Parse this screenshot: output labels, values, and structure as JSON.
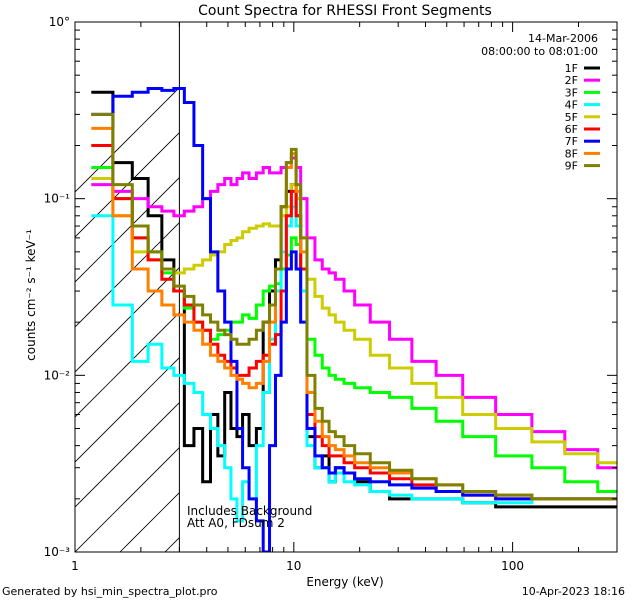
{
  "chart_data": {
    "type": "line",
    "title": "Count Spectra for RHESSI Front Segments",
    "xlabel": "Energy (keV)",
    "ylabel": "counts cm⁻² s⁻¹ keV⁻¹",
    "xscale": "log",
    "yscale": "log",
    "xlim": [
      1,
      300
    ],
    "ylim": [
      0.001,
      1
    ],
    "x_tick_labels": [
      "1",
      "10",
      "100"
    ],
    "y_tick_labels": [
      "10°",
      "10⁻¹",
      "10⁻²",
      "10⁻³"
    ],
    "date": "14-Mar-2006",
    "time_range": "08:00:00 to 08:01:00",
    "annotation_lines": [
      "Includes Background",
      "Att A0, FDsum 2"
    ],
    "hatched_region_max_kev": 3,
    "footer_left": "Generated by hsi_min_spectra_plot.pro",
    "footer_right": "10-Apr-2023 18:16",
    "series": [
      {
        "name": "1F",
        "color": "#000000",
        "x": [
          1.33,
          1.67,
          2,
          2.33,
          2.67,
          3,
          3.33,
          3.67,
          4,
          4.33,
          4.67,
          5,
          5.33,
          5.67,
          6,
          6.5,
          7,
          7.5,
          8,
          8.5,
          9,
          9.5,
          10,
          10.5,
          11,
          12,
          13,
          14,
          15,
          16,
          18,
          20,
          25,
          30,
          40,
          50,
          70,
          100,
          150,
          200,
          300
        ],
        "values": [
          0.4,
          0.16,
          0.13,
          0.08,
          0.045,
          0.03,
          0.004,
          0.005,
          0.0025,
          0.006,
          0.0035,
          0.008,
          0.005,
          0.0045,
          0.006,
          0.004,
          0.005,
          0.02,
          0.03,
          0.045,
          0.09,
          0.11,
          0.12,
          0.08,
          0.04,
          0.0045,
          0.003,
          0.0035,
          0.0025,
          0.003,
          0.0028,
          0.0025,
          0.0022,
          0.002,
          0.002,
          0.002,
          0.0019,
          0.0018,
          0.0018,
          0.0018,
          0.0018
        ]
      },
      {
        "name": "2F",
        "color": "#ff00ff",
        "x": [
          1.33,
          1.67,
          2,
          2.33,
          2.67,
          3,
          3.33,
          3.67,
          4,
          4.33,
          4.67,
          5,
          5.33,
          5.67,
          6,
          6.5,
          7,
          7.5,
          8,
          8.5,
          9,
          9.5,
          10,
          10.5,
          11,
          12,
          13,
          14,
          15,
          16,
          18,
          20,
          25,
          30,
          40,
          50,
          70,
          100,
          150,
          200,
          300
        ],
        "values": [
          0.12,
          0.11,
          0.1,
          0.09,
          0.085,
          0.08,
          0.085,
          0.09,
          0.1,
          0.11,
          0.12,
          0.13,
          0.12,
          0.13,
          0.14,
          0.13,
          0.14,
          0.15,
          0.14,
          0.14,
          0.15,
          0.16,
          0.17,
          0.15,
          0.1,
          0.06,
          0.045,
          0.04,
          0.038,
          0.035,
          0.03,
          0.025,
          0.02,
          0.016,
          0.012,
          0.01,
          0.0075,
          0.006,
          0.0048,
          0.0038,
          0.003
        ]
      },
      {
        "name": "3F",
        "color": "#00ff00",
        "x": [
          1.33,
          1.67,
          2,
          2.33,
          2.67,
          3,
          3.33,
          3.67,
          4,
          4.33,
          4.67,
          5,
          5.33,
          5.67,
          6,
          6.5,
          7,
          7.5,
          8,
          8.5,
          9,
          9.5,
          10,
          10.5,
          11,
          12,
          13,
          14,
          15,
          16,
          18,
          20,
          25,
          30,
          40,
          50,
          70,
          100,
          150,
          200,
          300
        ],
        "values": [
          0.15,
          0.1,
          0.06,
          0.05,
          0.038,
          0.03,
          0.024,
          0.02,
          0.018,
          0.016,
          0.017,
          0.018,
          0.02,
          0.02,
          0.022,
          0.021,
          0.025,
          0.03,
          0.032,
          0.033,
          0.04,
          0.048,
          0.06,
          0.055,
          0.03,
          0.016,
          0.013,
          0.011,
          0.01,
          0.0095,
          0.009,
          0.0085,
          0.008,
          0.0075,
          0.0065,
          0.0055,
          0.0045,
          0.0035,
          0.003,
          0.0025,
          0.0022
        ]
      },
      {
        "name": "4F",
        "color": "#00ffff",
        "x": [
          1.33,
          1.67,
          2,
          2.33,
          2.67,
          3,
          3.33,
          3.67,
          4,
          4.33,
          4.67,
          5,
          5.33,
          5.67,
          6,
          6.5,
          7,
          7.5,
          8,
          8.5,
          9,
          9.5,
          10,
          10.5,
          11,
          12,
          13,
          14,
          15,
          16,
          18,
          20,
          25,
          30,
          40,
          50,
          70,
          100,
          150,
          200,
          300
        ],
        "values": [
          0.08,
          0.025,
          0.012,
          0.015,
          0.011,
          0.01,
          0.009,
          0.008,
          0.006,
          0.005,
          0.004,
          0.003,
          0.002,
          0.0015,
          0.0025,
          0.002,
          0.004,
          0.008,
          0.016,
          0.03,
          0.05,
          0.07,
          0.09,
          0.07,
          0.03,
          0.004,
          0.003,
          0.003,
          0.0025,
          0.0028,
          0.0025,
          0.0024,
          0.0022,
          0.0021,
          0.002,
          0.002,
          0.0019,
          0.0019,
          0.002,
          0.002,
          0.002
        ]
      },
      {
        "name": "5F",
        "color": "#cccc00",
        "x": [
          1.33,
          1.67,
          2,
          2.33,
          2.67,
          3,
          3.33,
          3.67,
          4,
          4.33,
          4.67,
          5,
          5.33,
          5.67,
          6,
          6.5,
          7,
          7.5,
          8,
          8.5,
          9,
          9.5,
          10,
          10.5,
          11,
          12,
          13,
          14,
          15,
          16,
          18,
          20,
          25,
          30,
          40,
          50,
          70,
          100,
          150,
          200,
          300
        ],
        "values": [
          0.13,
          0.08,
          0.05,
          0.045,
          0.04,
          0.038,
          0.04,
          0.042,
          0.045,
          0.048,
          0.05,
          0.055,
          0.058,
          0.06,
          0.065,
          0.068,
          0.07,
          0.072,
          0.07,
          0.07,
          0.08,
          0.09,
          0.12,
          0.1,
          0.06,
          0.035,
          0.028,
          0.024,
          0.022,
          0.02,
          0.018,
          0.016,
          0.013,
          0.011,
          0.009,
          0.0075,
          0.006,
          0.005,
          0.0042,
          0.0036,
          0.0032
        ]
      },
      {
        "name": "6F",
        "color": "#ff0000",
        "x": [
          1.33,
          1.67,
          2,
          2.33,
          2.67,
          3,
          3.33,
          3.67,
          4,
          4.33,
          4.67,
          5,
          5.33,
          5.67,
          6,
          6.5,
          7,
          7.5,
          8,
          8.5,
          9,
          9.5,
          10,
          10.5,
          11,
          12,
          13,
          14,
          15,
          16,
          18,
          20,
          25,
          30,
          40,
          50,
          70,
          100,
          150,
          200,
          300
        ],
        "values": [
          0.2,
          0.1,
          0.06,
          0.045,
          0.035,
          0.03,
          0.025,
          0.02,
          0.018,
          0.015,
          0.013,
          0.012,
          0.011,
          0.01,
          0.01,
          0.011,
          0.012,
          0.013,
          0.015,
          0.017,
          0.03,
          0.08,
          0.11,
          0.08,
          0.04,
          0.006,
          0.0045,
          0.004,
          0.0035,
          0.0035,
          0.0032,
          0.003,
          0.0028,
          0.0026,
          0.0024,
          0.0022,
          0.0021,
          0.002,
          0.002,
          0.002,
          0.002
        ]
      },
      {
        "name": "7F",
        "color": "#0000ff",
        "x": [
          1.33,
          1.67,
          2,
          2.33,
          2.67,
          3,
          3.33,
          3.67,
          4,
          4.33,
          4.67,
          5,
          5.33,
          5.67,
          6,
          6.5,
          7,
          7.5,
          8,
          8.5,
          9,
          9.5,
          10,
          10.5,
          11,
          12,
          13,
          14,
          15,
          16,
          18,
          20,
          25,
          30,
          40,
          50,
          70,
          100,
          150,
          200,
          300
        ],
        "values": [
          0.3,
          0.38,
          0.4,
          0.42,
          0.41,
          0.42,
          0.35,
          0.2,
          0.1,
          0.05,
          0.03,
          0.02,
          0.012,
          0.005,
          0.003,
          0.002,
          0.0015,
          0.001,
          0.004,
          0.01,
          0.02,
          0.04,
          0.05,
          0.04,
          0.02,
          0.005,
          0.0035,
          0.003,
          0.0028,
          0.003,
          0.0028,
          0.0026,
          0.0025,
          0.0024,
          0.0023,
          0.0022,
          0.0021,
          0.002,
          0.002,
          0.002,
          0.002
        ]
      },
      {
        "name": "8F",
        "color": "#ff8000",
        "x": [
          1.33,
          1.67,
          2,
          2.33,
          2.67,
          3,
          3.33,
          3.67,
          4,
          4.33,
          4.67,
          5,
          5.33,
          5.67,
          6,
          6.5,
          7,
          7.5,
          8,
          8.5,
          9,
          9.5,
          10,
          10.5,
          11,
          12,
          13,
          14,
          15,
          16,
          18,
          20,
          25,
          30,
          40,
          50,
          70,
          100,
          150,
          200,
          300
        ],
        "values": [
          0.25,
          0.08,
          0.04,
          0.03,
          0.025,
          0.022,
          0.02,
          0.018,
          0.015,
          0.013,
          0.012,
          0.011,
          0.01,
          0.0095,
          0.009,
          0.0085,
          0.009,
          0.012,
          0.02,
          0.04,
          0.09,
          0.15,
          0.18,
          0.11,
          0.05,
          0.008,
          0.0055,
          0.0045,
          0.004,
          0.0038,
          0.0035,
          0.0032,
          0.003,
          0.0028,
          0.0026,
          0.0024,
          0.0022,
          0.0021,
          0.002,
          0.002,
          0.002
        ]
      },
      {
        "name": "9F",
        "color": "#808000",
        "x": [
          1.33,
          1.67,
          2,
          2.33,
          2.67,
          3,
          3.33,
          3.67,
          4,
          4.33,
          4.67,
          5,
          5.33,
          5.67,
          6,
          6.5,
          7,
          7.5,
          8,
          8.5,
          9,
          9.5,
          10,
          10.5,
          11,
          12,
          13,
          14,
          15,
          16,
          18,
          20,
          25,
          30,
          40,
          50,
          70,
          100,
          150,
          200,
          300
        ],
        "values": [
          0.3,
          0.12,
          0.07,
          0.05,
          0.04,
          0.032,
          0.028,
          0.025,
          0.022,
          0.02,
          0.018,
          0.017,
          0.016,
          0.015,
          0.015,
          0.016,
          0.018,
          0.02,
          0.025,
          0.04,
          0.09,
          0.16,
          0.19,
          0.12,
          0.06,
          0.01,
          0.0065,
          0.0055,
          0.0048,
          0.0045,
          0.004,
          0.0036,
          0.0032,
          0.0029,
          0.0026,
          0.0024,
          0.0022,
          0.0021,
          0.002,
          0.002,
          0.002
        ]
      }
    ]
  }
}
